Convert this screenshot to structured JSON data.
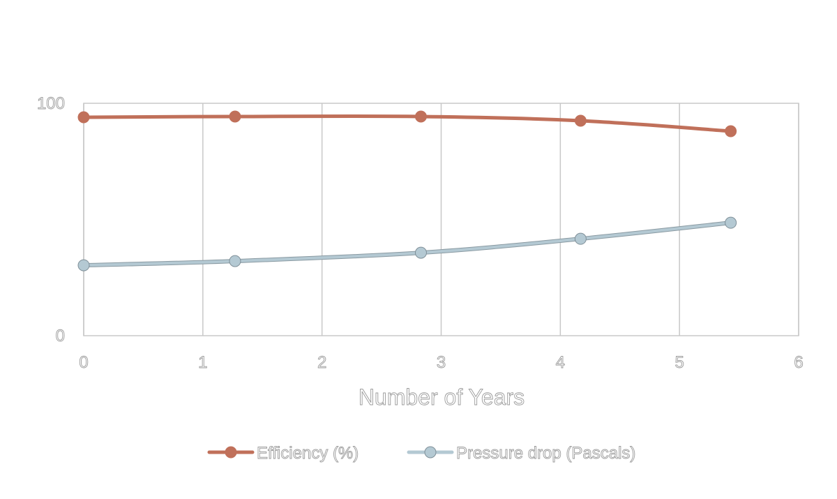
{
  "chart_data": {
    "type": "line",
    "title": "",
    "xlabel": "Number of Years",
    "ylabel": "",
    "xlim": [
      0,
      6
    ],
    "ylim": [
      0,
      100
    ],
    "x_ticks": [
      "0",
      "1",
      "2",
      "3",
      "4",
      "5",
      "6"
    ],
    "y_ticks": [
      "0",
      "100"
    ],
    "grid": true,
    "legend_position": "bottom",
    "series": [
      {
        "name": "Efficiency (%)",
        "color": "#c0705a",
        "x": [
          0,
          1.27,
          2.83,
          4.17,
          5.43
        ],
        "values": [
          94,
          94.3,
          94.3,
          92.5,
          88
        ]
      },
      {
        "name": "Pressure drop (Pascals)",
        "color": "#b4c9d3",
        "x": [
          0,
          1.27,
          2.83,
          4.17,
          5.43
        ],
        "values": [
          30.3,
          32.1,
          35.7,
          41.7,
          48.6
        ]
      }
    ]
  }
}
